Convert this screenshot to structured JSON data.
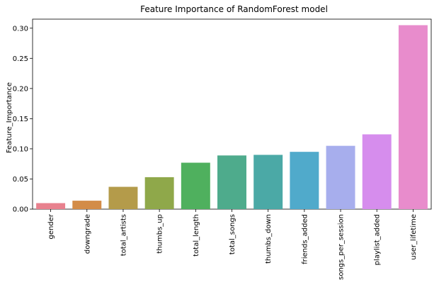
{
  "chart_data": {
    "type": "bar",
    "title": "Feature Importance of RandomForest model",
    "xlabel": "",
    "ylabel": "Feature_Importance",
    "ylim": [
      0,
      0.315
    ],
    "yticks": [
      "0.00",
      "0.05",
      "0.10",
      "0.15",
      "0.20",
      "0.25",
      "0.30"
    ],
    "ytick_values": [
      0,
      0.05,
      0.1,
      0.15,
      0.2,
      0.25,
      0.3
    ],
    "grid": false,
    "legend": "none",
    "categories": [
      "gender",
      "downgrade",
      "total_artists",
      "thumbs_up",
      "total_length",
      "total_songs",
      "thumbs_down",
      "friends_added",
      "songs_per_session",
      "playlist_added",
      "user_lifetime"
    ],
    "values": [
      0.01,
      0.014,
      0.037,
      0.053,
      0.077,
      0.089,
      0.09,
      0.095,
      0.105,
      0.124,
      0.305
    ],
    "colors": [
      "#e8818e",
      "#d38c48",
      "#b49b4a",
      "#8fa84a",
      "#4fb05e",
      "#4eab8c",
      "#4ba9a6",
      "#50aacb",
      "#a7aeed",
      "#d68ded",
      "#e88ccc"
    ]
  }
}
